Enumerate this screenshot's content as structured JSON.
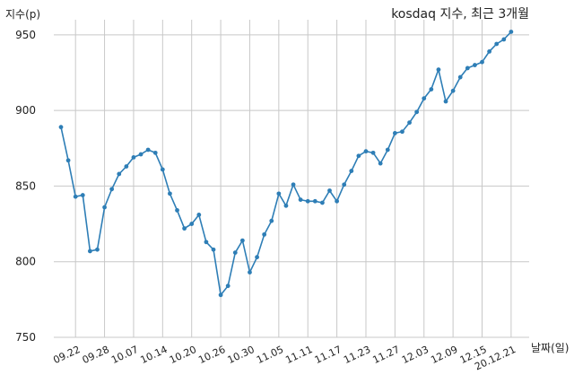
{
  "chart_data": {
    "type": "line",
    "title": "kosdaq 지수, 최근 3개월",
    "ylabel": "지수(p)",
    "xlabel": "날짜(일)",
    "ylim": [
      750,
      960
    ],
    "yticks": [
      750,
      800,
      850,
      900,
      950
    ],
    "grid": true,
    "x_tick_labels": [
      "09.22",
      "09.28",
      "10.07",
      "10.14",
      "10.20",
      "10.26",
      "10.30",
      "11.05",
      "11.11",
      "11.17",
      "11.23",
      "11.27",
      "12.03",
      "12.09",
      "12.15",
      "20.12.21"
    ],
    "x_tick_indices": [
      2,
      6,
      10,
      14,
      18,
      22,
      26,
      30,
      34,
      38,
      42,
      46,
      50,
      54,
      58,
      62
    ],
    "series": [
      {
        "values": [
          889,
          867,
          843,
          844,
          807,
          808,
          836,
          848,
          858,
          863,
          869,
          871,
          874,
          872,
          861,
          845,
          834,
          822,
          825,
          831,
          813,
          808,
          778,
          784,
          806,
          814,
          793,
          803,
          818,
          827,
          845,
          837,
          851,
          841,
          840,
          840,
          839,
          847,
          840,
          851,
          860,
          870,
          873,
          872,
          865,
          874,
          885,
          886,
          892,
          899,
          908,
          914,
          927,
          906,
          913,
          922,
          928,
          930,
          932,
          939,
          944,
          947,
          952
        ]
      }
    ],
    "colors": {
      "line": "#2e7eb6",
      "grid": "#c8c8c8",
      "text": "#222222"
    }
  }
}
